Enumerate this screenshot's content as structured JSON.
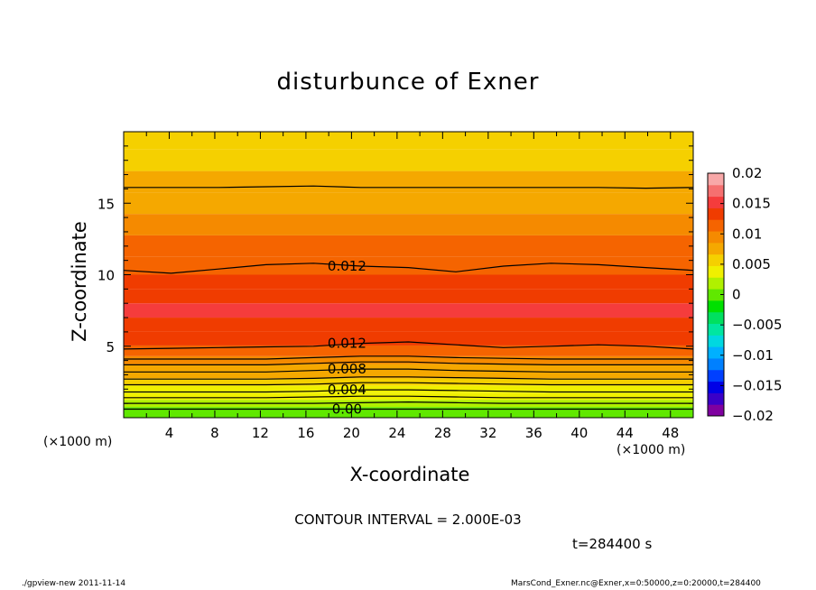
{
  "title": "disturbunce of Exner",
  "footer": {
    "left": "./gpview-new  2011-11-14",
    "right": "MarsCond_Exner.nc@Exner,x=0:50000,z=0:20000,t=284400"
  },
  "contour_interval_text": "CONTOUR INTERVAL = 2.000E-03",
  "time_text": "t=284400 s",
  "unit_left": "(×1000 m)",
  "unit_right": "(×1000 m)",
  "chart_data": {
    "type": "heatmap",
    "title": "disturbunce of Exner",
    "xlabel": "X-coordinate",
    "ylabel": "Z-coordinate",
    "x_unit": "(×1000 m)",
    "z_unit": "(×1000 m)",
    "xlim": [
      0,
      50
    ],
    "ylim": [
      0,
      20
    ],
    "x_ticks": [
      4,
      8,
      12,
      16,
      20,
      24,
      28,
      32,
      36,
      40,
      44,
      48
    ],
    "y_ticks": [
      5,
      10,
      15
    ],
    "colorbar": {
      "levels": [
        -0.02,
        -0.015,
        -0.01,
        -0.005,
        0,
        0.005,
        0.01,
        0.015,
        0.02
      ],
      "labels": [
        "0.02",
        "0.015",
        "0.01",
        "0.005",
        "0",
        "−0.005",
        "−0.01",
        "−0.015",
        "−0.02"
      ],
      "colors": [
        "#7f00a0",
        "#3a00c8",
        "#0000e6",
        "#0040ff",
        "#0080ff",
        "#00b0ff",
        "#00d8e0",
        "#00e6a0",
        "#00e060",
        "#00e000",
        "#60e800",
        "#b0f000",
        "#f0f000",
        "#f5d000",
        "#f5a800",
        "#f58a00",
        "#f56400",
        "#f03c00",
        "#f53c3c",
        "#f57070",
        "#f8a8a8"
      ]
    },
    "contour_labels": [
      "0.012",
      "0.012",
      "0.008",
      "0.004",
      "0.00"
    ],
    "contour_interval": 0.002,
    "time_s": 284400,
    "z_profile": [
      {
        "z": 0.5,
        "value": 0.0005
      },
      {
        "z": 1.0,
        "value": 0.0015
      },
      {
        "z": 1.5,
        "value": 0.0035
      },
      {
        "z": 2.0,
        "value": 0.0045
      },
      {
        "z": 2.5,
        "value": 0.0055
      },
      {
        "z": 3.0,
        "value": 0.0075
      },
      {
        "z": 3.5,
        "value": 0.0085
      },
      {
        "z": 4.0,
        "value": 0.0095
      },
      {
        "z": 4.6,
        "value": 0.0115
      },
      {
        "z": 5.5,
        "value": 0.0125
      },
      {
        "z": 6.5,
        "value": 0.0135
      },
      {
        "z": 7.5,
        "value": 0.0145
      },
      {
        "z": 8.5,
        "value": 0.0135
      },
      {
        "z": 9.5,
        "value": 0.0125
      },
      {
        "z": 10.5,
        "value": 0.0115
      },
      {
        "z": 12.0,
        "value": 0.0105
      },
      {
        "z": 13.5,
        "value": 0.0095
      },
      {
        "z": 15.0,
        "value": 0.0085
      },
      {
        "z": 16.5,
        "value": 0.0075
      },
      {
        "z": 18.0,
        "value": 0.0065
      },
      {
        "z": 19.5,
        "value": 0.0055
      }
    ],
    "contours": [
      {
        "label": "0.00",
        "z": [
          0.6,
          0.6,
          0.6,
          0.6,
          0.6,
          0.6,
          0.6,
          0.6,
          0.6,
          0.6,
          0.6,
          0.6,
          0.6
        ]
      },
      {
        "label": "",
        "z": [
          1.0,
          1.0,
          1.0,
          1.0,
          1.0,
          1.05,
          1.1,
          1.05,
          1.0,
          1.0,
          1.0,
          1.0,
          1.0
        ]
      },
      {
        "label": "",
        "z": [
          1.4,
          1.4,
          1.4,
          1.4,
          1.45,
          1.5,
          1.5,
          1.45,
          1.4,
          1.4,
          1.4,
          1.4,
          1.4
        ]
      },
      {
        "label": "0.004",
        "z": [
          1.8,
          1.8,
          1.8,
          1.8,
          1.85,
          1.95,
          1.95,
          1.9,
          1.85,
          1.8,
          1.8,
          1.8,
          1.8
        ]
      },
      {
        "label": "",
        "z": [
          2.3,
          2.3,
          2.3,
          2.3,
          2.35,
          2.45,
          2.45,
          2.4,
          2.35,
          2.3,
          2.3,
          2.3,
          2.3
        ]
      },
      {
        "label": "",
        "z": [
          2.7,
          2.7,
          2.7,
          2.7,
          2.75,
          2.85,
          2.85,
          2.8,
          2.75,
          2.7,
          2.7,
          2.7,
          2.7
        ]
      },
      {
        "label": "0.008",
        "z": [
          3.2,
          3.2,
          3.2,
          3.2,
          3.3,
          3.4,
          3.4,
          3.3,
          3.25,
          3.2,
          3.2,
          3.2,
          3.2
        ]
      },
      {
        "label": "",
        "z": [
          3.7,
          3.7,
          3.7,
          3.7,
          3.8,
          3.9,
          3.9,
          3.8,
          3.75,
          3.7,
          3.7,
          3.7,
          3.7
        ]
      },
      {
        "label": "",
        "z": [
          4.1,
          4.1,
          4.1,
          4.1,
          4.2,
          4.3,
          4.3,
          4.2,
          4.15,
          4.1,
          4.1,
          4.1,
          4.1
        ]
      },
      {
        "label": "0.012",
        "z": [
          4.8,
          4.85,
          4.9,
          4.95,
          5.0,
          5.2,
          5.3,
          5.1,
          4.9,
          5.0,
          5.1,
          5.0,
          4.8
        ]
      },
      {
        "label": "0.012",
        "z": [
          10.3,
          10.1,
          10.4,
          10.7,
          10.8,
          10.6,
          10.5,
          10.2,
          10.6,
          10.8,
          10.7,
          10.5,
          10.3
        ]
      },
      {
        "label": "",
        "z": [
          16.1,
          16.1,
          16.1,
          16.15,
          16.2,
          16.1,
          16.1,
          16.1,
          16.1,
          16.1,
          16.1,
          16.05,
          16.1
        ]
      }
    ]
  }
}
